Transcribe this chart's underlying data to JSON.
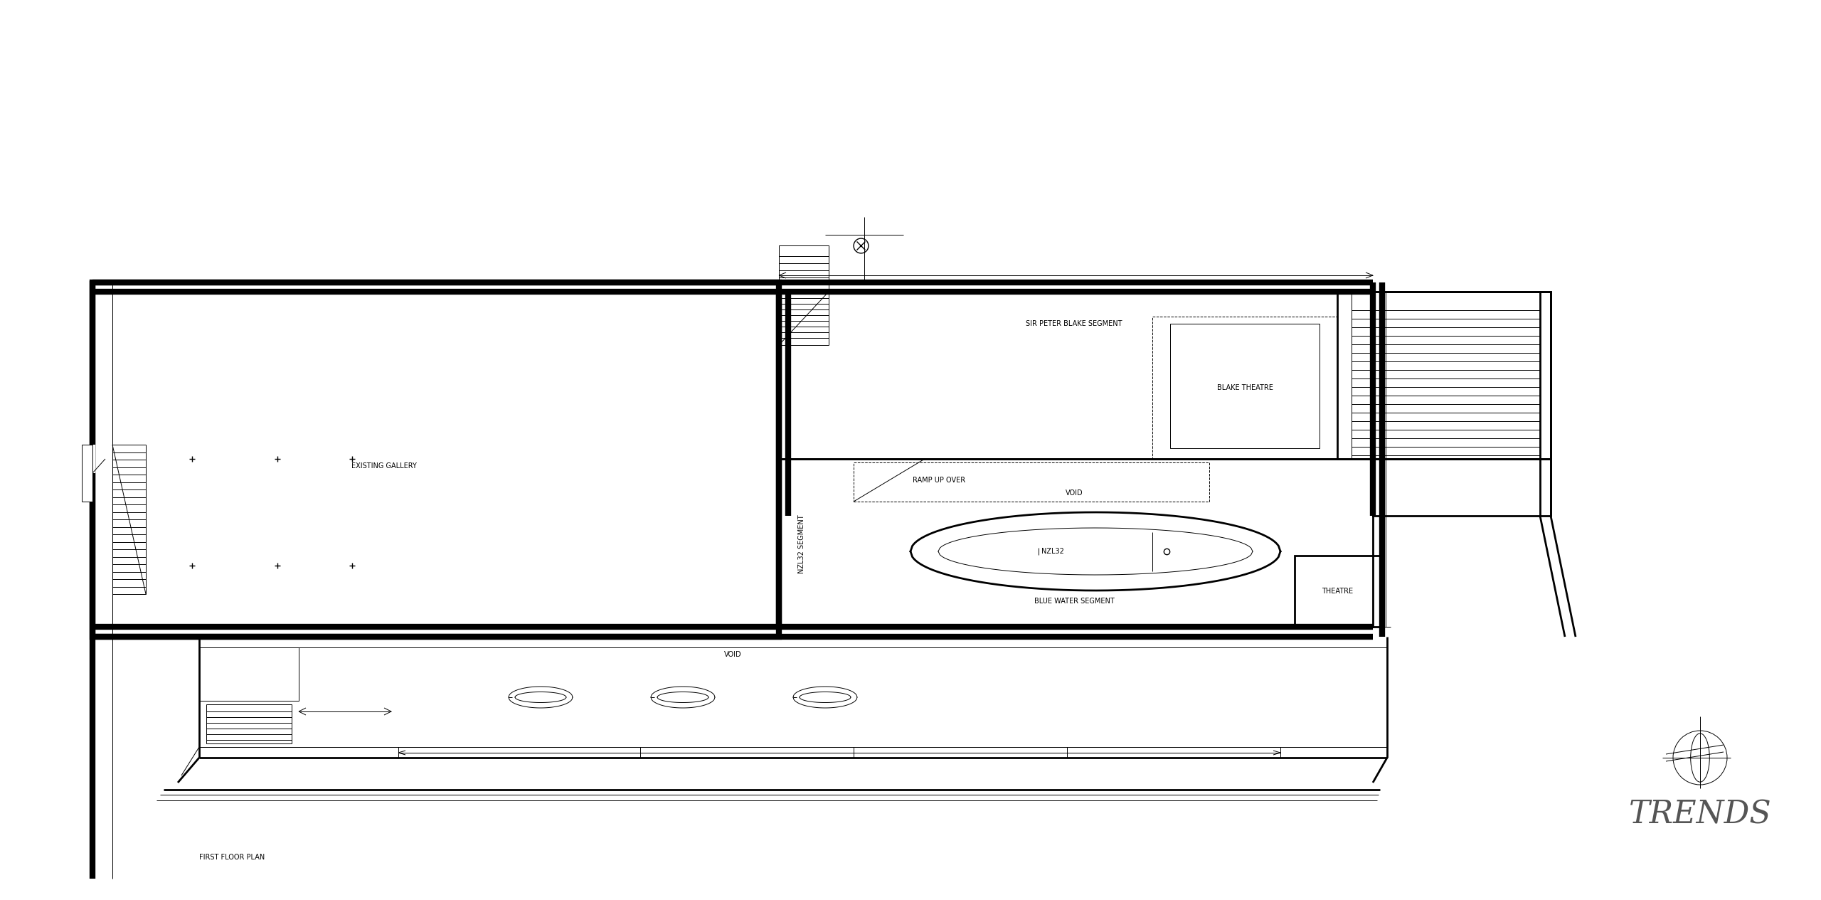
{
  "title": "FIRST FLOOR PLAN",
  "background": "#ffffff",
  "line_color": "#000000",
  "thick_lw": 6,
  "medium_lw": 2,
  "thin_lw": 0.7,
  "labels": {
    "existing_gallery": "EXISTING GALLERY",
    "nzl32_segment": "NZL32 SEGMENT",
    "nzl32": "NZL32",
    "sir_peter_blake": "SIR PETER BLAKE SEGMENT",
    "ramp_up_over": "RAMP UP OVER",
    "void_top": "VOID",
    "void_bottom": "VOID",
    "blake_theatre": "BLAKE THEATRE",
    "blue_water": "BLUE WATER SEGMENT",
    "theatre": "THEATRE",
    "first_floor_plan": "FIRST FLOOR PLAN",
    "trends": "TRENDS"
  },
  "font_size_small": 7,
  "font_size_medium": 8,
  "font_size_large": 32
}
